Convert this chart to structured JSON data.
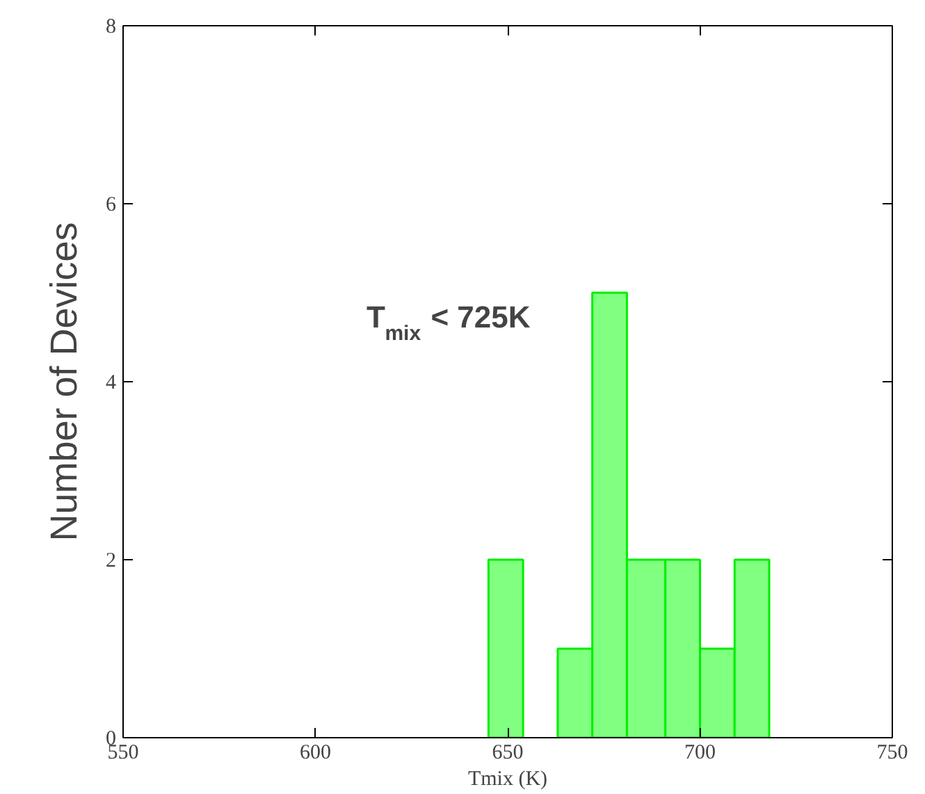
{
  "chart_data": {
    "type": "histogram",
    "xlabel": "Tmix (K)",
    "ylabel": "Number of Devices",
    "bins": [
      645,
      654,
      663,
      672,
      681,
      691,
      700,
      709,
      718
    ],
    "values": [
      2,
      0,
      1,
      5,
      2,
      2,
      1,
      2
    ],
    "color": "#80ff80",
    "xlim": [
      550,
      750
    ],
    "xticks": [
      550,
      600,
      650,
      700,
      750
    ],
    "ylim": [
      0,
      8
    ],
    "yticks": [
      0,
      2,
      4,
      6,
      8
    ],
    "grid": false,
    "annotations": [
      "T$_{mix}$ < 725K"
    ]
  }
}
